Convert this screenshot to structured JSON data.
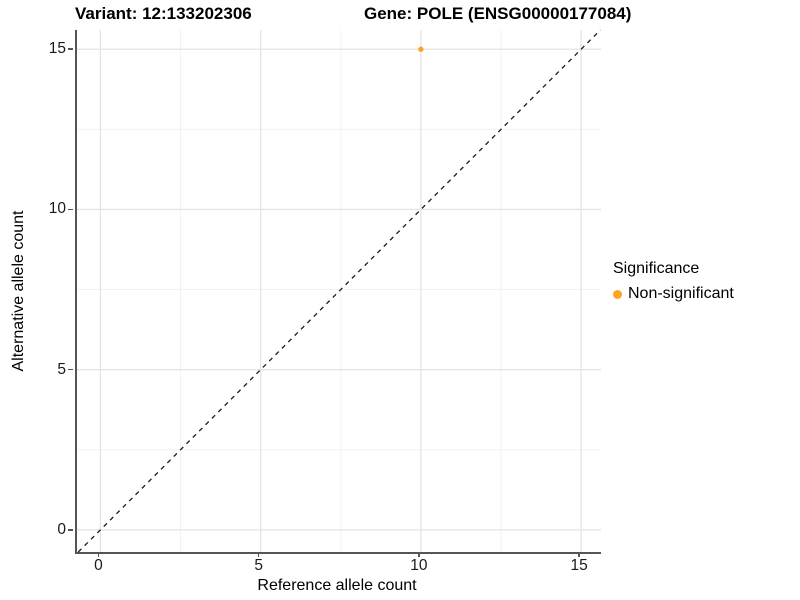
{
  "chart_data": {
    "type": "scatter",
    "title_left": "Variant: 12:133202306",
    "title_right": "Gene: POLE (ENSG00000177084)",
    "xlabel": "Reference allele count",
    "ylabel": "Alternative allele count",
    "xlim": [
      -0.73,
      15.62
    ],
    "ylim": [
      -0.69,
      15.6
    ],
    "x_ticks": [
      0,
      5,
      10,
      15
    ],
    "y_ticks": [
      0,
      5,
      10,
      15
    ],
    "x_tick_labels": [
      "0",
      "5",
      "10",
      "15"
    ],
    "y_tick_labels": [
      "0",
      "5",
      "10",
      "15"
    ],
    "x_minor": [
      2.5,
      7.5,
      12.5
    ],
    "y_minor": [
      2.5,
      7.5,
      12.5
    ],
    "grid": "on",
    "points": [
      {
        "x": 10,
        "y": 15,
        "series": "Non-significant"
      }
    ],
    "reference_line": {
      "slope": 1,
      "intercept": 0,
      "style": "dashed",
      "color": "#1a1a1a"
    },
    "legend": {
      "title": "Significance",
      "position": "right",
      "items": [
        {
          "label": "Non-significant",
          "color": "#FFA324"
        }
      ]
    },
    "colors": {
      "point": "#FFA324",
      "grid_major": "#E4E4E4",
      "grid_minor": "#F1F1F1",
      "axis_line": "#555555",
      "background": "#FFFFFF"
    }
  }
}
